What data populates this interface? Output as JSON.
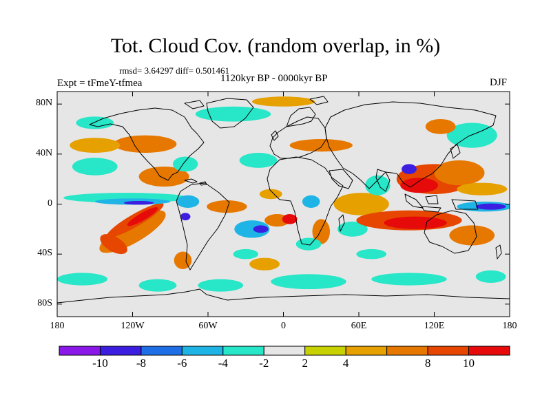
{
  "title": "Tot. Cloud Cov. (random overlap, in %)",
  "stats_line": "rmsd= 3.64297 diff= 0.501461",
  "period": "1120kyr BP - 0000kyr BP",
  "experiment": "Expt = tFmeY-tfmea",
  "season": "DJF",
  "map_extent": {
    "lon_range": [
      -180,
      180
    ],
    "lat_range": [
      -90,
      90
    ]
  },
  "lat_ticks": [
    {
      "label": "80N",
      "lat": 80
    },
    {
      "label": "40N",
      "lat": 40
    },
    {
      "label": "0",
      "lat": 0
    },
    {
      "label": "40S",
      "lat": -40
    },
    {
      "label": "80S",
      "lat": -80
    }
  ],
  "lon_ticks": [
    {
      "label": "180",
      "lon": -180
    },
    {
      "label": "120W",
      "lon": -120
    },
    {
      "label": "60W",
      "lon": -60
    },
    {
      "label": "0",
      "lon": 0
    },
    {
      "label": "60E",
      "lon": 60
    },
    {
      "label": "120E",
      "lon": 120
    },
    {
      "label": "180",
      "lon": 180
    }
  ],
  "colorbar": {
    "levels": [
      -12,
      -10,
      -8,
      -6,
      -4,
      -2,
      2,
      4,
      6,
      8,
      10,
      12
    ],
    "colors": [
      "#8a18e8",
      "#3c1ee0",
      "#1e6ee6",
      "#1eb4e6",
      "#28e6c8",
      "#e6e6e6",
      "#c8d200",
      "#e6a000",
      "#e67800",
      "#e64600",
      "#e60a0a"
    ],
    "labels": [
      "-10",
      "-8",
      "-6",
      "-4",
      "-2",
      "2",
      "4",
      "8",
      "10"
    ]
  },
  "field_blobs": [
    {
      "lon": -120,
      "lat": -22,
      "rlon": 30,
      "rlat": 9,
      "rot": -30,
      "level": 6
    },
    {
      "lon": -118,
      "lat": -13,
      "rlon": 26,
      "rlat": 5,
      "rot": -30,
      "level": 8
    },
    {
      "lon": -112,
      "lat": -10,
      "rlon": 14,
      "rlat": 3,
      "rot": -30,
      "level": 10
    },
    {
      "lon": -135,
      "lat": -32,
      "rlon": 12,
      "rlat": 6,
      "rot": 30,
      "level": 8
    },
    {
      "lon": -125,
      "lat": 5,
      "rlon": 50,
      "rlat": 4,
      "rot": 0,
      "level": -4
    },
    {
      "lon": -120,
      "lat": 2,
      "rlon": 30,
      "rlat": 2.5,
      "rot": 0,
      "level": -6
    },
    {
      "lon": -115,
      "lat": 1,
      "rlon": 12,
      "rlat": 1.5,
      "rot": 0,
      "level": -10
    },
    {
      "lon": -150,
      "lat": 30,
      "rlon": 18,
      "rlat": 7,
      "rot": 0,
      "level": -4
    },
    {
      "lon": -95,
      "lat": 22,
      "rlon": 20,
      "rlat": 8,
      "rot": 0,
      "level": 6
    },
    {
      "lon": -110,
      "lat": 48,
      "rlon": 25,
      "rlat": 7,
      "rot": 0,
      "level": 6
    },
    {
      "lon": -150,
      "lat": 47,
      "rlon": 20,
      "rlat": 6,
      "rot": 0,
      "level": 4
    },
    {
      "lon": -78,
      "lat": 32,
      "rlon": 10,
      "rlat": 6,
      "rot": 0,
      "level": -4
    },
    {
      "lon": -76,
      "lat": 2,
      "rlon": 9,
      "rlat": 5,
      "rot": 0,
      "level": -6
    },
    {
      "lon": -78,
      "lat": -10,
      "rlon": 4,
      "rlat": 3,
      "rot": 0,
      "level": -10
    },
    {
      "lon": -80,
      "lat": -45,
      "rlon": 7,
      "rlat": 7,
      "rot": 0,
      "level": 6
    },
    {
      "lon": -45,
      "lat": -2,
      "rlon": 16,
      "rlat": 5,
      "rot": 0,
      "level": 6
    },
    {
      "lon": -25,
      "lat": -20,
      "rlon": 14,
      "rlat": 7,
      "rot": 0,
      "level": -6
    },
    {
      "lon": -18,
      "lat": -20,
      "rlon": 6,
      "rlat": 3,
      "rot": 0,
      "level": -10
    },
    {
      "lon": -5,
      "lat": -13,
      "rlon": 10,
      "rlat": 5,
      "rot": 0,
      "level": 6
    },
    {
      "lon": 5,
      "lat": -12,
      "rlon": 6,
      "rlat": 4,
      "rot": 0,
      "level": 10
    },
    {
      "lon": -10,
      "lat": 8,
      "rlon": 9,
      "rlat": 4,
      "rot": 0,
      "level": 4
    },
    {
      "lon": 22,
      "lat": 2,
      "rlon": 7,
      "rlat": 5,
      "rot": 0,
      "level": -6
    },
    {
      "lon": 30,
      "lat": -22,
      "rlon": 7,
      "rlat": 10,
      "rot": 0,
      "level": 6
    },
    {
      "lon": 20,
      "lat": -32,
      "rlon": 10,
      "rlat": 5,
      "rot": 0,
      "level": -4
    },
    {
      "lon": 55,
      "lat": -20,
      "rlon": 12,
      "rlat": 6,
      "rot": 0,
      "level": -4
    },
    {
      "lon": 62,
      "lat": 0,
      "rlon": 22,
      "rlat": 9,
      "rot": 0,
      "level": 4
    },
    {
      "lon": 75,
      "lat": 15,
      "rlon": 10,
      "rlat": 8,
      "rot": 0,
      "level": -4
    },
    {
      "lon": 100,
      "lat": -13,
      "rlon": 42,
      "rlat": 8,
      "rot": 0,
      "level": 8
    },
    {
      "lon": 105,
      "lat": -15,
      "rlon": 25,
      "rlat": 5,
      "rot": 0,
      "level": 10
    },
    {
      "lon": 120,
      "lat": 20,
      "rlon": 30,
      "rlat": 12,
      "rot": 0,
      "level": 8
    },
    {
      "lon": 140,
      "lat": 25,
      "rlon": 20,
      "rlat": 10,
      "rot": 0,
      "level": 6
    },
    {
      "lon": 108,
      "lat": 15,
      "rlon": 15,
      "rlat": 6,
      "rot": 0,
      "level": 10
    },
    {
      "lon": 100,
      "lat": 28,
      "rlon": 6,
      "rlat": 4,
      "rot": 0,
      "level": -10
    },
    {
      "lon": 150,
      "lat": -25,
      "rlon": 18,
      "rlat": 8,
      "rot": 0,
      "level": 6
    },
    {
      "lon": 160,
      "lat": -2,
      "rlon": 22,
      "rlat": 4,
      "rot": 0,
      "level": -6
    },
    {
      "lon": 165,
      "lat": -2,
      "rlon": 12,
      "rlat": 2.5,
      "rot": 0,
      "level": -10
    },
    {
      "lon": 158,
      "lat": 12,
      "rlon": 20,
      "rlat": 5,
      "rot": 0,
      "level": 4
    },
    {
      "lon": 150,
      "lat": 55,
      "rlon": 20,
      "rlat": 10,
      "rot": 0,
      "level": -4
    },
    {
      "lon": 125,
      "lat": 62,
      "rlon": 12,
      "rlat": 6,
      "rot": 0,
      "level": 6
    },
    {
      "lon": 30,
      "lat": 47,
      "rlon": 25,
      "rlat": 5,
      "rot": 0,
      "level": 6
    },
    {
      "lon": -20,
      "lat": 35,
      "rlon": 15,
      "rlat": 6,
      "rot": 0,
      "level": -4
    },
    {
      "lon": -40,
      "lat": 72,
      "rlon": 30,
      "rlat": 6,
      "rot": 0,
      "level": -4
    },
    {
      "lon": 0,
      "lat": 82,
      "rlon": 25,
      "rlat": 4,
      "rot": 0,
      "level": 4
    },
    {
      "lon": -150,
      "lat": 65,
      "rlon": 15,
      "rlat": 5,
      "rot": 0,
      "level": -4
    },
    {
      "lon": -160,
      "lat": -60,
      "rlon": 20,
      "rlat": 5,
      "rot": 0,
      "level": -4
    },
    {
      "lon": -100,
      "lat": -65,
      "rlon": 15,
      "rlat": 5,
      "rot": 0,
      "level": -4
    },
    {
      "lon": -50,
      "lat": -65,
      "rlon": 18,
      "rlat": 5,
      "rot": 0,
      "level": -4
    },
    {
      "lon": 20,
      "lat": -62,
      "rlon": 30,
      "rlat": 6,
      "rot": 0,
      "level": -4
    },
    {
      "lon": 100,
      "lat": -60,
      "rlon": 30,
      "rlat": 5,
      "rot": 0,
      "level": -4
    },
    {
      "lon": 165,
      "lat": -58,
      "rlon": 12,
      "rlat": 5,
      "rot": 0,
      "level": -4
    },
    {
      "lon": -15,
      "lat": -48,
      "rlon": 12,
      "rlat": 5,
      "rot": 0,
      "level": 4
    },
    {
      "lon": -30,
      "lat": -40,
      "rlon": 10,
      "rlat": 4,
      "rot": 0,
      "level": -4
    },
    {
      "lon": 70,
      "lat": -40,
      "rlon": 12,
      "rlat": 4,
      "rot": 0,
      "level": -4
    }
  ]
}
